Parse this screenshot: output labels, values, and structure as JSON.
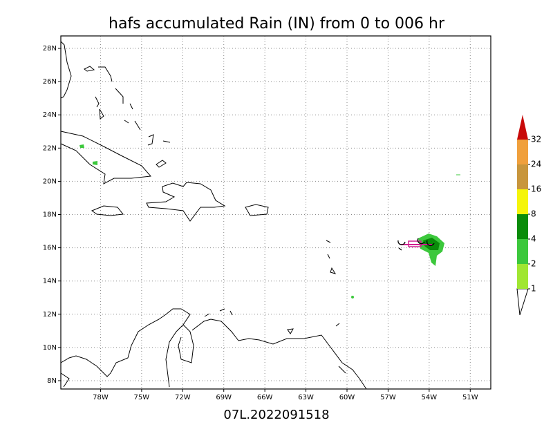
{
  "title": "hafs accumulated Rain (IN) from 0 to 006 hr",
  "footer": "07L.2022091518",
  "map": {
    "lon_range": [
      -80.9,
      -49.5
    ],
    "lat_range": [
      7.5,
      28.75
    ],
    "grid": true,
    "lon_ticks": [
      {
        "value": -78,
        "label": "78W"
      },
      {
        "value": -75,
        "label": "75W"
      },
      {
        "value": -72,
        "label": "72W"
      },
      {
        "value": -69,
        "label": "69W"
      },
      {
        "value": -66,
        "label": "66W"
      },
      {
        "value": -63,
        "label": "63W"
      },
      {
        "value": -60,
        "label": "60W"
      },
      {
        "value": -57,
        "label": "57W"
      },
      {
        "value": -54,
        "label": "54W"
      },
      {
        "value": -51,
        "label": "51W"
      }
    ],
    "lat_ticks": [
      {
        "value": 8,
        "label": "8N"
      },
      {
        "value": 10,
        "label": "10N"
      },
      {
        "value": 12,
        "label": "12N"
      },
      {
        "value": 14,
        "label": "14N"
      },
      {
        "value": 16,
        "label": "16N"
      },
      {
        "value": 18,
        "label": "18N"
      },
      {
        "value": 20,
        "label": "20N"
      },
      {
        "value": 22,
        "label": "22N"
      },
      {
        "value": 24,
        "label": "24N"
      },
      {
        "value": 26,
        "label": "26N"
      },
      {
        "value": 28,
        "label": "28N"
      }
    ]
  },
  "colorbar": {
    "levels": [
      1,
      2,
      4,
      8,
      16,
      24,
      32
    ],
    "colors": [
      "#a0e632",
      "#3cc83c",
      "#0a8c0a",
      "#f5f50a",
      "#c8963c",
      "#f0a03c",
      "#c80a0a"
    ]
  }
}
